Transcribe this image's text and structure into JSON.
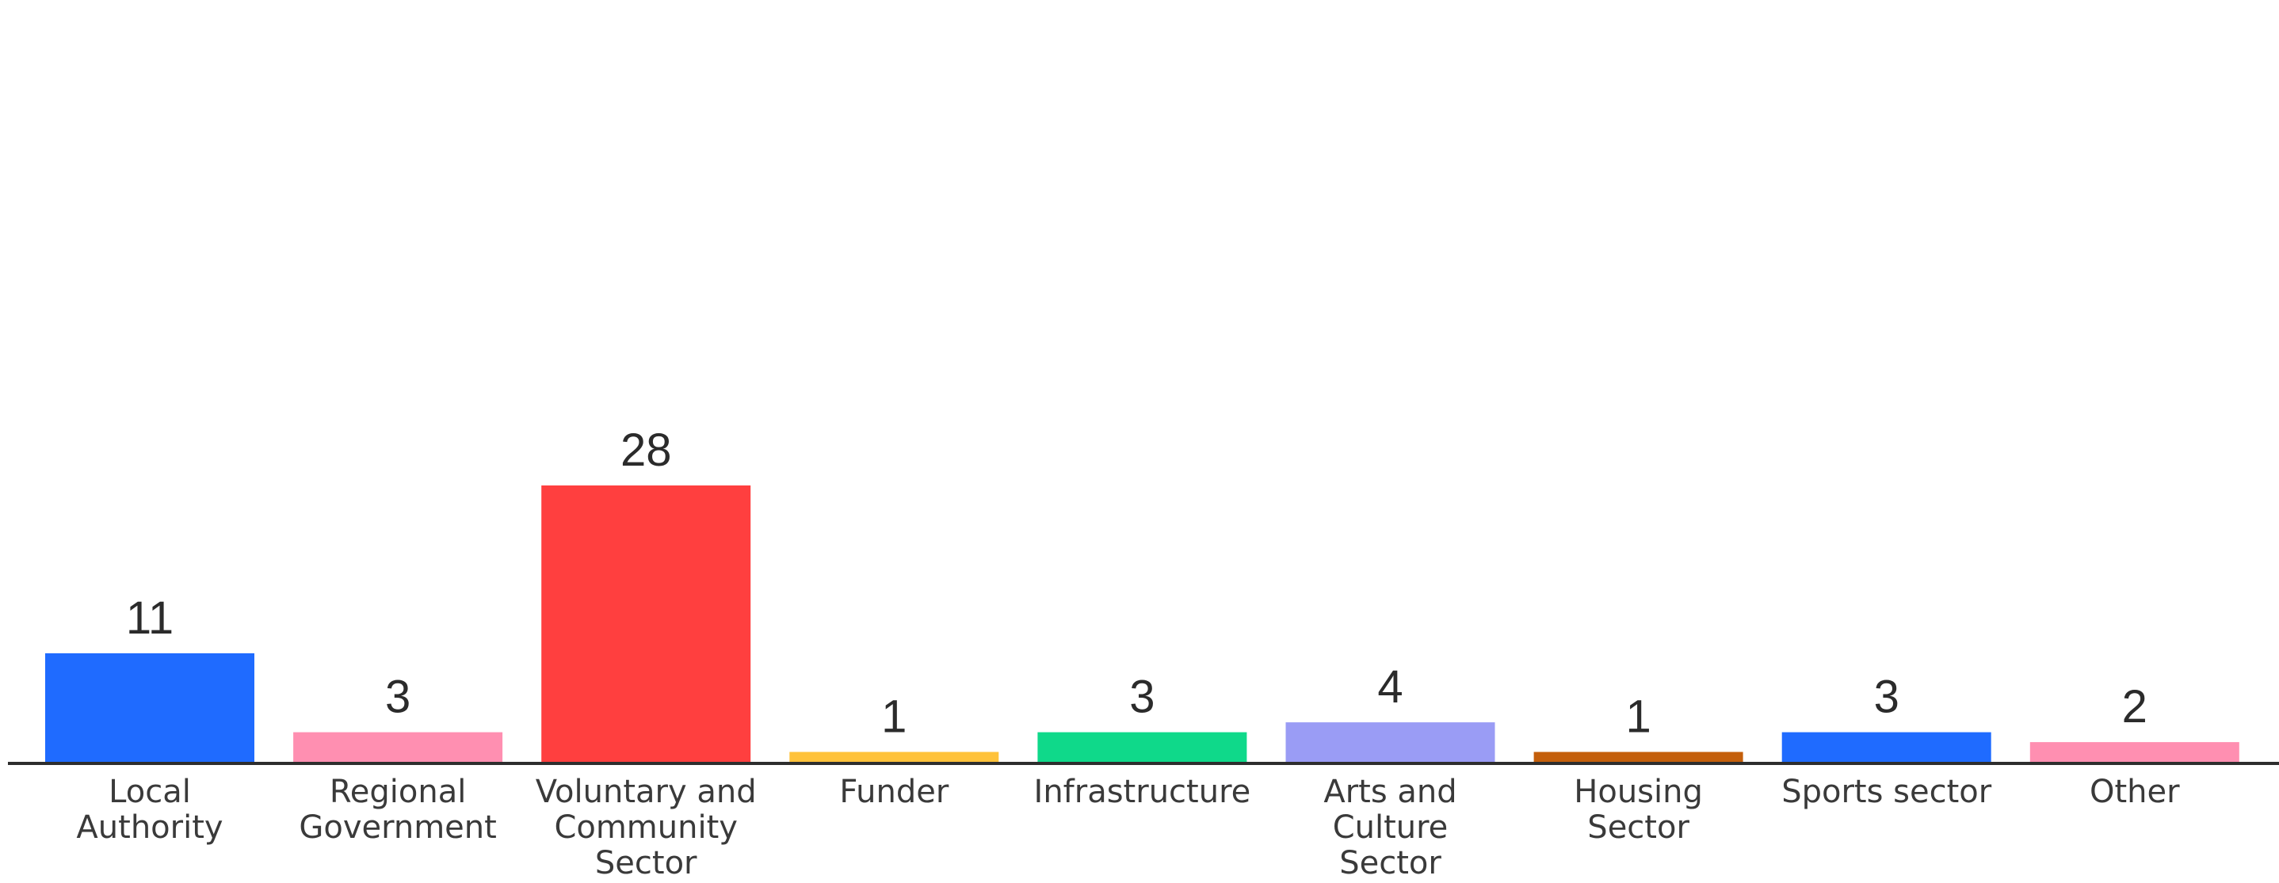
{
  "chart_data": {
    "type": "bar",
    "title": "",
    "xlabel": "",
    "ylabel": "",
    "ylim": [
      0,
      28
    ],
    "grid": false,
    "legend": "none",
    "categories": [
      "Local Authority",
      "Regional Government",
      "Voluntary and Community Sector",
      "Funder",
      "Infrastructure",
      "Arts and Culture Sector",
      "Housing Sector",
      "Sports sector",
      "Other"
    ],
    "category_lines": [
      [
        "Local",
        "Authority"
      ],
      [
        "Regional",
        "Government"
      ],
      [
        "Voluntary and",
        "Community",
        "Sector"
      ],
      [
        "Funder"
      ],
      [
        "Infrastructure"
      ],
      [
        "Arts and",
        "Culture",
        "Sector"
      ],
      [
        "Housing",
        "Sector"
      ],
      [
        "Sports sector"
      ],
      [
        "Other"
      ]
    ],
    "values": [
      11,
      3,
      28,
      1,
      3,
      4,
      1,
      3,
      2
    ],
    "data_labels": [
      "11",
      "3",
      "28",
      "1",
      "3",
      "4",
      "1",
      "3",
      "2"
    ],
    "colors": [
      "#1f6bff",
      "#ff8fb1",
      "#ff3f3f",
      "#ffc23a",
      "#0fd98a",
      "#9a9cf5",
      "#c45f0b",
      "#1f6bff",
      "#ff8fb1"
    ],
    "axis_color": "#2e2e2e"
  }
}
